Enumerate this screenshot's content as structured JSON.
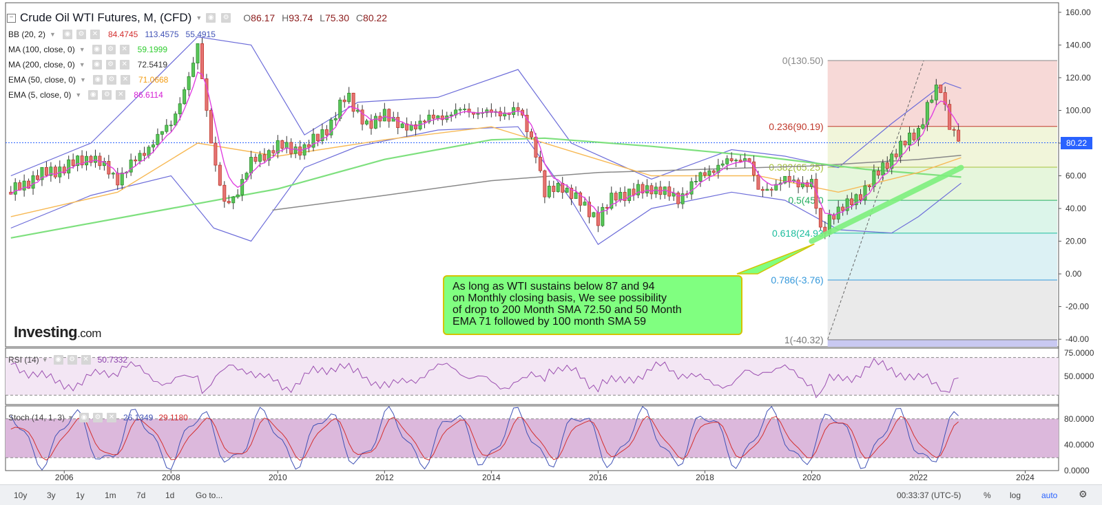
{
  "instrument": {
    "title": "Crude Oil WTI Futures, M, (CFD)",
    "open_label": "O",
    "open": "86.17",
    "high_label": "H",
    "high": "93.74",
    "low_label": "L",
    "low": "75.30",
    "close_label": "C",
    "close": "80.22"
  },
  "indicators": [
    {
      "label": "BB (20, 2)",
      "values": [
        "84.4745",
        "113.4575",
        "55.4915"
      ],
      "colors": [
        "#d32f2f",
        "#3f51b5",
        "#3f51b5"
      ]
    },
    {
      "label": "MA (100, close, 0)",
      "values": [
        "59.1999"
      ],
      "colors": [
        "#2ecc2e"
      ]
    },
    {
      "label": "MA (200, close, 0)",
      "values": [
        "72.5419"
      ],
      "colors": [
        "#333333"
      ]
    },
    {
      "label": "EMA (50, close, 0)",
      "values": [
        "71.0668"
      ],
      "colors": [
        "#f39c12"
      ]
    },
    {
      "label": "EMA (5, close, 0)",
      "values": [
        "86.6114"
      ],
      "colors": [
        "#d41cd4"
      ]
    }
  ],
  "rsi": {
    "label": "RSI (14)",
    "value": "50.7332",
    "value_color": "#8e44ad",
    "ticks": [
      "75.0000",
      "50.0000"
    ]
  },
  "stoch": {
    "label": "Stoch (14, 1, 3)",
    "k": "26.1349",
    "d": "29.1180",
    "k_color": "#3f51b5",
    "d_color": "#d32f2f",
    "ticks": [
      "80.0000",
      "40.0000",
      "0.0000"
    ]
  },
  "price_axis": {
    "ticks": [
      "160.00",
      "140.00",
      "120.00",
      "100.00",
      "80.00",
      "60.00",
      "40.00",
      "20.00",
      "0.00",
      "-20.00",
      "-40.00"
    ]
  },
  "current_price": "80.22",
  "time_axis": {
    "ticks": [
      "2006",
      "2008",
      "2010",
      "2012",
      "2014",
      "2016",
      "2018",
      "2020",
      "2022",
      "2024"
    ]
  },
  "fib_levels": [
    {
      "label": "0(130.50)",
      "color": "#888888"
    },
    {
      "label": "0.236(90.19)",
      "color": "#c0392b"
    },
    {
      "label": "0.382(65.25)",
      "color": "#a5c23a"
    },
    {
      "label": "0.5(45.0",
      "color": "#27ae60"
    },
    {
      "label": "0.618(24.93",
      "color": "#1abc9c"
    },
    {
      "label": "0.786(-3.76)",
      "color": "#3498db"
    },
    {
      "label": "1(-40.32)",
      "color": "#777777"
    }
  ],
  "annotation": {
    "lines": [
      "As long as WTI sustains below 87 and 94",
      "on Monthly closing basis, We see possibility",
      "of drop to 200 Month SMA 72.50 and 50 Month",
      "EMA 71 followed by 100 month SMA 59"
    ]
  },
  "brand": {
    "name": "Investing",
    "suffix": ".com"
  },
  "toolbar": {
    "ranges": [
      "10y",
      "3y",
      "1y",
      "1m",
      "7d",
      "1d"
    ],
    "goto": "Go to...",
    "clock": "00:33:37 (UTC-5)",
    "percent": "%",
    "log": "log",
    "auto": "auto"
  },
  "chart_data": {
    "type": "candlestick",
    "title": "Crude Oil WTI Futures, M, (CFD)",
    "ylim": [
      -45,
      165
    ],
    "xlim": [
      2004.9,
      2024.6
    ],
    "close_series": {
      "x": [
        2005.0,
        2005.5,
        2006.0,
        2006.5,
        2007.0,
        2007.5,
        2008.0,
        2008.4,
        2008.5,
        2008.8,
        2009.0,
        2009.2,
        2009.5,
        2010.0,
        2010.5,
        2011.0,
        2011.3,
        2011.7,
        2012.0,
        2012.3,
        2012.6,
        2013.0,
        2013.5,
        2014.0,
        2014.5,
        2014.8,
        2015.0,
        2015.3,
        2015.6,
        2015.9,
        2016.0,
        2016.3,
        2016.7,
        2017.0,
        2017.5,
        2018.0,
        2018.4,
        2018.8,
        2019.0,
        2019.5,
        2020.0,
        2020.2,
        2020.3,
        2020.6,
        2021.0,
        2021.5,
        2022.0,
        2022.2,
        2022.4,
        2022.6,
        2022.8
      ],
      "y": [
        50,
        60,
        65,
        72,
        58,
        75,
        92,
        125,
        140,
        70,
        42,
        48,
        68,
        78,
        76,
        92,
        110,
        88,
        100,
        88,
        92,
        96,
        100,
        98,
        100,
        80,
        48,
        55,
        45,
        37,
        33,
        48,
        50,
        53,
        46,
        62,
        68,
        72,
        50,
        57,
        55,
        20,
        35,
        40,
        52,
        72,
        88,
        105,
        115,
        90,
        80
      ]
    },
    "ma200": {
      "x": [
        2009.9,
        2012.0,
        2014.0,
        2016.0,
        2018.0,
        2020.0,
        2022.0,
        2022.8
      ],
      "y": [
        39,
        48,
        57,
        62,
        64,
        66,
        70,
        72.5
      ]
    },
    "ma100": {
      "x": [
        2005.0,
        2008.0,
        2010.0,
        2012.0,
        2014.0,
        2015.0,
        2017.0,
        2019.0,
        2021.0,
        2022.8
      ],
      "y": [
        22,
        40,
        52,
        70,
        82,
        83,
        78,
        72,
        64,
        59.2
      ]
    },
    "ema50": {
      "x": [
        2005.0,
        2007.0,
        2008.5,
        2010.0,
        2012.0,
        2014.0,
        2015.5,
        2017.0,
        2019.0,
        2020.5,
        2022.0,
        2022.8
      ],
      "y": [
        35,
        50,
        80,
        72,
        82,
        90,
        75,
        60,
        60,
        50,
        62,
        71.1
      ]
    },
    "bb_upper": {
      "x": [
        2005.0,
        2006.5,
        2008.5,
        2009.5,
        2010.5,
        2011.5,
        2013.0,
        2014.5,
        2015.5,
        2017.0,
        2018.5,
        2019.5,
        2020.5,
        2021.5,
        2022.5,
        2022.8
      ],
      "y": [
        60,
        80,
        145,
        140,
        85,
        105,
        108,
        125,
        80,
        58,
        76,
        72,
        65,
        92,
        117,
        113.5
      ]
    },
    "bb_lower": {
      "x": [
        2005.0,
        2006.5,
        2008.0,
        2008.8,
        2009.5,
        2010.5,
        2011.5,
        2013.0,
        2014.5,
        2015.5,
        2016.0,
        2017.0,
        2018.5,
        2019.5,
        2020.5,
        2021.5,
        2022.0,
        2022.8
      ],
      "y": [
        28,
        48,
        60,
        28,
        20,
        65,
        78,
        88,
        90,
        45,
        18,
        40,
        50,
        45,
        27,
        25,
        35,
        55.5
      ]
    },
    "fibonacci": {
      "levels": [
        130.5,
        90.19,
        65.25,
        45.0,
        24.93,
        -3.76,
        -40.32
      ],
      "ratios": [
        0,
        0.236,
        0.382,
        0.5,
        0.618,
        0.786,
        1
      ]
    },
    "trendline": {
      "x": [
        2020.0,
        2022.8
      ],
      "y": [
        20,
        65
      ]
    },
    "rsi": {
      "ylim": [
        20,
        80
      ],
      "bands": [
        70,
        30
      ],
      "last": 50.7332
    },
    "stoch": {
      "ylim": [
        0,
        100
      ],
      "bands": [
        80,
        20
      ],
      "k_last": 26.1349,
      "d_last": 29.118
    }
  }
}
